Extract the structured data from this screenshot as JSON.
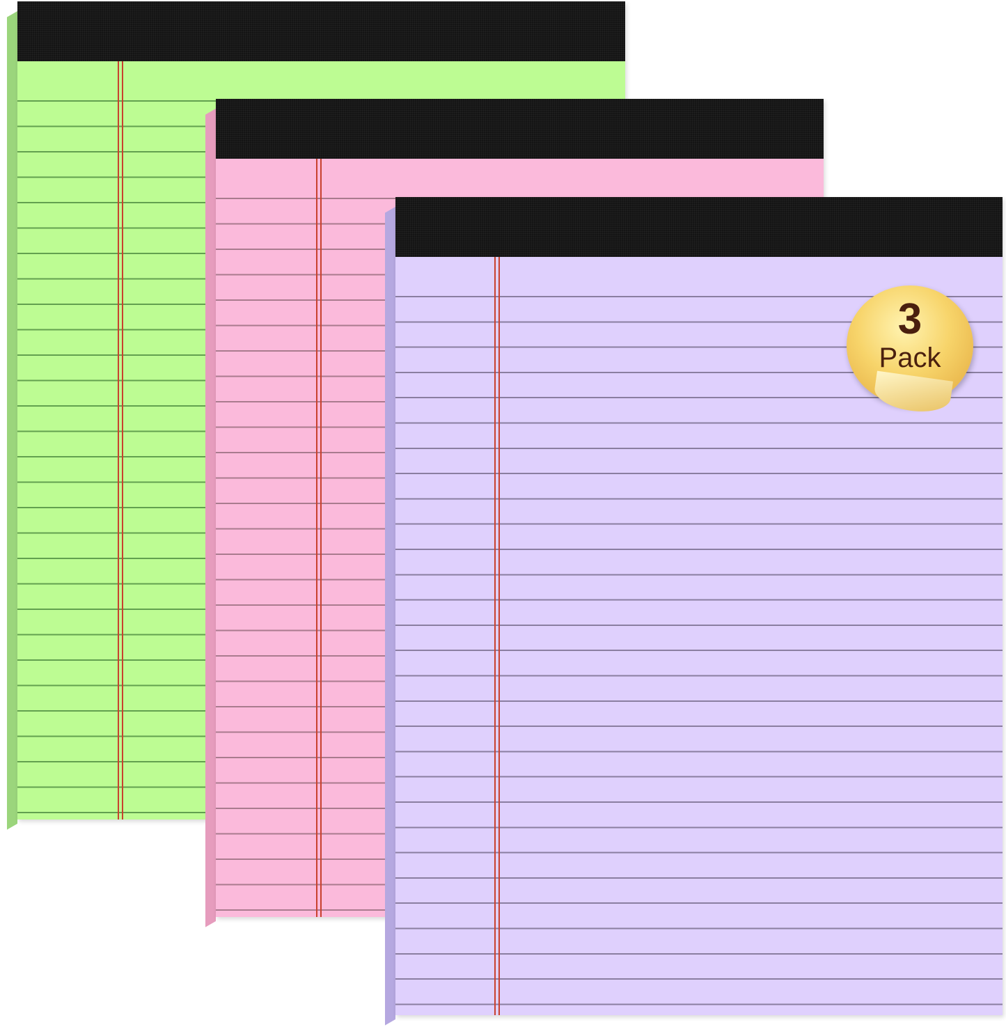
{
  "product": {
    "pads": [
      {
        "name": "green",
        "color": "#bdfc93"
      },
      {
        "name": "pink",
        "color": "#fbbadb"
      },
      {
        "name": "purple",
        "color": "#dfd0fd"
      }
    ],
    "binding_color": "#141414",
    "margin_line_color": "#c8412e",
    "badge": {
      "number": "3",
      "label": "Pack",
      "color": "#f7d46a"
    }
  }
}
